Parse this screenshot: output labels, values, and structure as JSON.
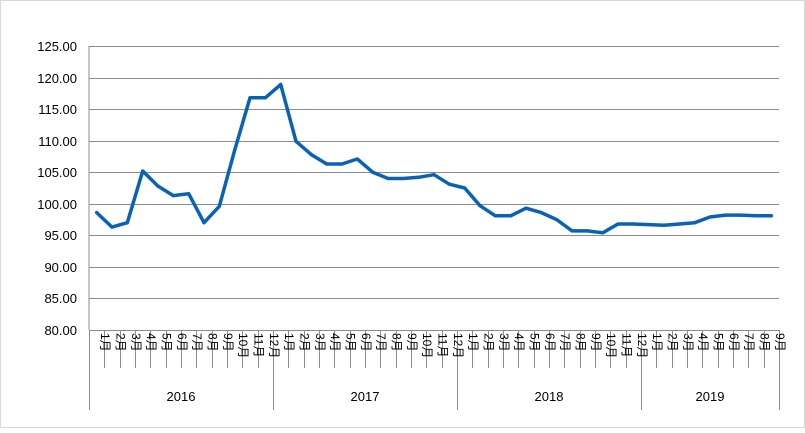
{
  "chart_data": {
    "type": "line",
    "title": "",
    "xlabel": "",
    "ylabel": "",
    "ylim": [
      80,
      125
    ],
    "y_ticks": [
      "80.00",
      "85.00",
      "90.00",
      "95.00",
      "100.00",
      "105.00",
      "110.00",
      "115.00",
      "120.00",
      "125.00"
    ],
    "grid": "horizontal",
    "legend": "none",
    "line_color": "#0a62b4",
    "years": [
      "2016",
      "2017",
      "2018",
      "2019"
    ],
    "categories": [
      "1月",
      "2月",
      "3月",
      "4月",
      "5月",
      "6月",
      "7月",
      "8月",
      "9月",
      "10月",
      "11月",
      "12月",
      "1月",
      "2月",
      "3月",
      "4月",
      "5月",
      "6月",
      "7月",
      "8月",
      "9月",
      "10月",
      "11月",
      "12月",
      "1月",
      "2月",
      "3月",
      "4月",
      "5月",
      "6月",
      "7月",
      "8月",
      "9月",
      "10月",
      "11月",
      "12月",
      "1月",
      "2月",
      "3月",
      "4月",
      "5月",
      "6月",
      "7月",
      "8月",
      "9月"
    ],
    "category_years": [
      "2016",
      "2016",
      "2016",
      "2016",
      "2016",
      "2016",
      "2016",
      "2016",
      "2016",
      "2016",
      "2016",
      "2016",
      "2017",
      "2017",
      "2017",
      "2017",
      "2017",
      "2017",
      "2017",
      "2017",
      "2017",
      "2017",
      "2017",
      "2017",
      "2018",
      "2018",
      "2018",
      "2018",
      "2018",
      "2018",
      "2018",
      "2018",
      "2018",
      "2018",
      "2018",
      "2018",
      "2019",
      "2019",
      "2019",
      "2019",
      "2019",
      "2019",
      "2019",
      "2019",
      "2019"
    ],
    "series": [
      {
        "values": [
          98.6,
          96.3,
          97.0,
          105.2,
          102.8,
          101.3,
          101.6,
          97.0,
          99.6,
          108.5,
          116.8,
          116.8,
          118.9,
          109.9,
          107.8,
          106.3,
          106.3,
          107.1,
          105.0,
          104.0,
          104.0,
          104.2,
          104.6,
          103.1,
          102.5,
          99.7,
          98.1,
          98.1,
          99.3,
          98.6,
          97.5,
          95.7,
          95.7,
          95.4,
          96.8,
          96.8,
          96.7,
          96.6,
          96.8,
          97.0,
          97.9,
          98.2,
          98.2,
          98.1,
          98.1
        ]
      }
    ]
  }
}
